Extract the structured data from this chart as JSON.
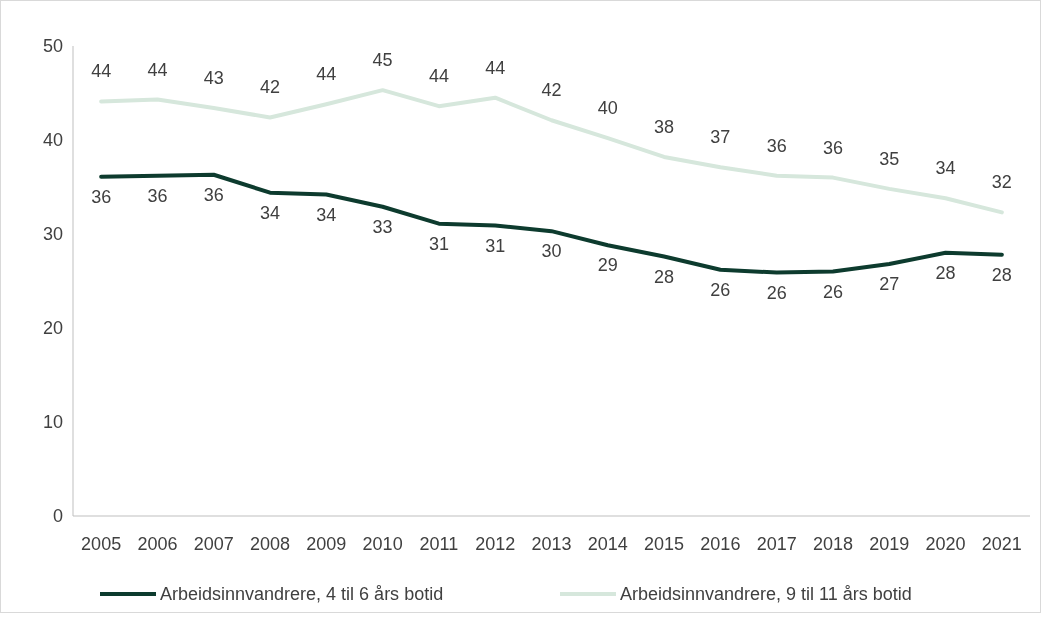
{
  "chart_data": {
    "type": "line",
    "categories": [
      "2005",
      "2006",
      "2007",
      "2008",
      "2009",
      "2010",
      "2011",
      "2012",
      "2013",
      "2014",
      "2015",
      "2016",
      "2017",
      "2018",
      "2019",
      "2020",
      "2021"
    ],
    "series": [
      {
        "name": "Arbeidsinnvandrere, 4 til 6 års botid",
        "color": "#0d3b2e",
        "values": [
          36.1,
          36.2,
          36.3,
          34.4,
          34.2,
          32.9,
          31.1,
          30.9,
          30.3,
          28.8,
          27.6,
          26.2,
          25.9,
          26.0,
          26.8,
          28.0,
          27.8
        ],
        "value_labels": [
          "36",
          "36",
          "36",
          "34",
          "34",
          "33",
          "31",
          "31",
          "30",
          "29",
          "28",
          "26",
          "26",
          "26",
          "27",
          "28",
          "28"
        ]
      },
      {
        "name": "Arbeidsinnvandrere, 9 til 11 års botid",
        "color": "#d6e7dc",
        "values": [
          44.1,
          44.3,
          43.4,
          42.4,
          43.8,
          45.3,
          43.6,
          44.5,
          42.1,
          40.2,
          38.2,
          37.1,
          36.2,
          36.0,
          34.8,
          33.8,
          32.3
        ],
        "value_labels": [
          "44",
          "44",
          "43",
          "42",
          "44",
          "45",
          "44",
          "44",
          "42",
          "40",
          "38",
          "37",
          "36",
          "36",
          "35",
          "34",
          "32"
        ]
      }
    ],
    "ylim": [
      0,
      50
    ],
    "yticks": [
      0,
      10,
      20,
      30,
      40,
      50
    ],
    "grid": false,
    "legend": "bottom",
    "marker": "none",
    "line_style": "solid"
  }
}
